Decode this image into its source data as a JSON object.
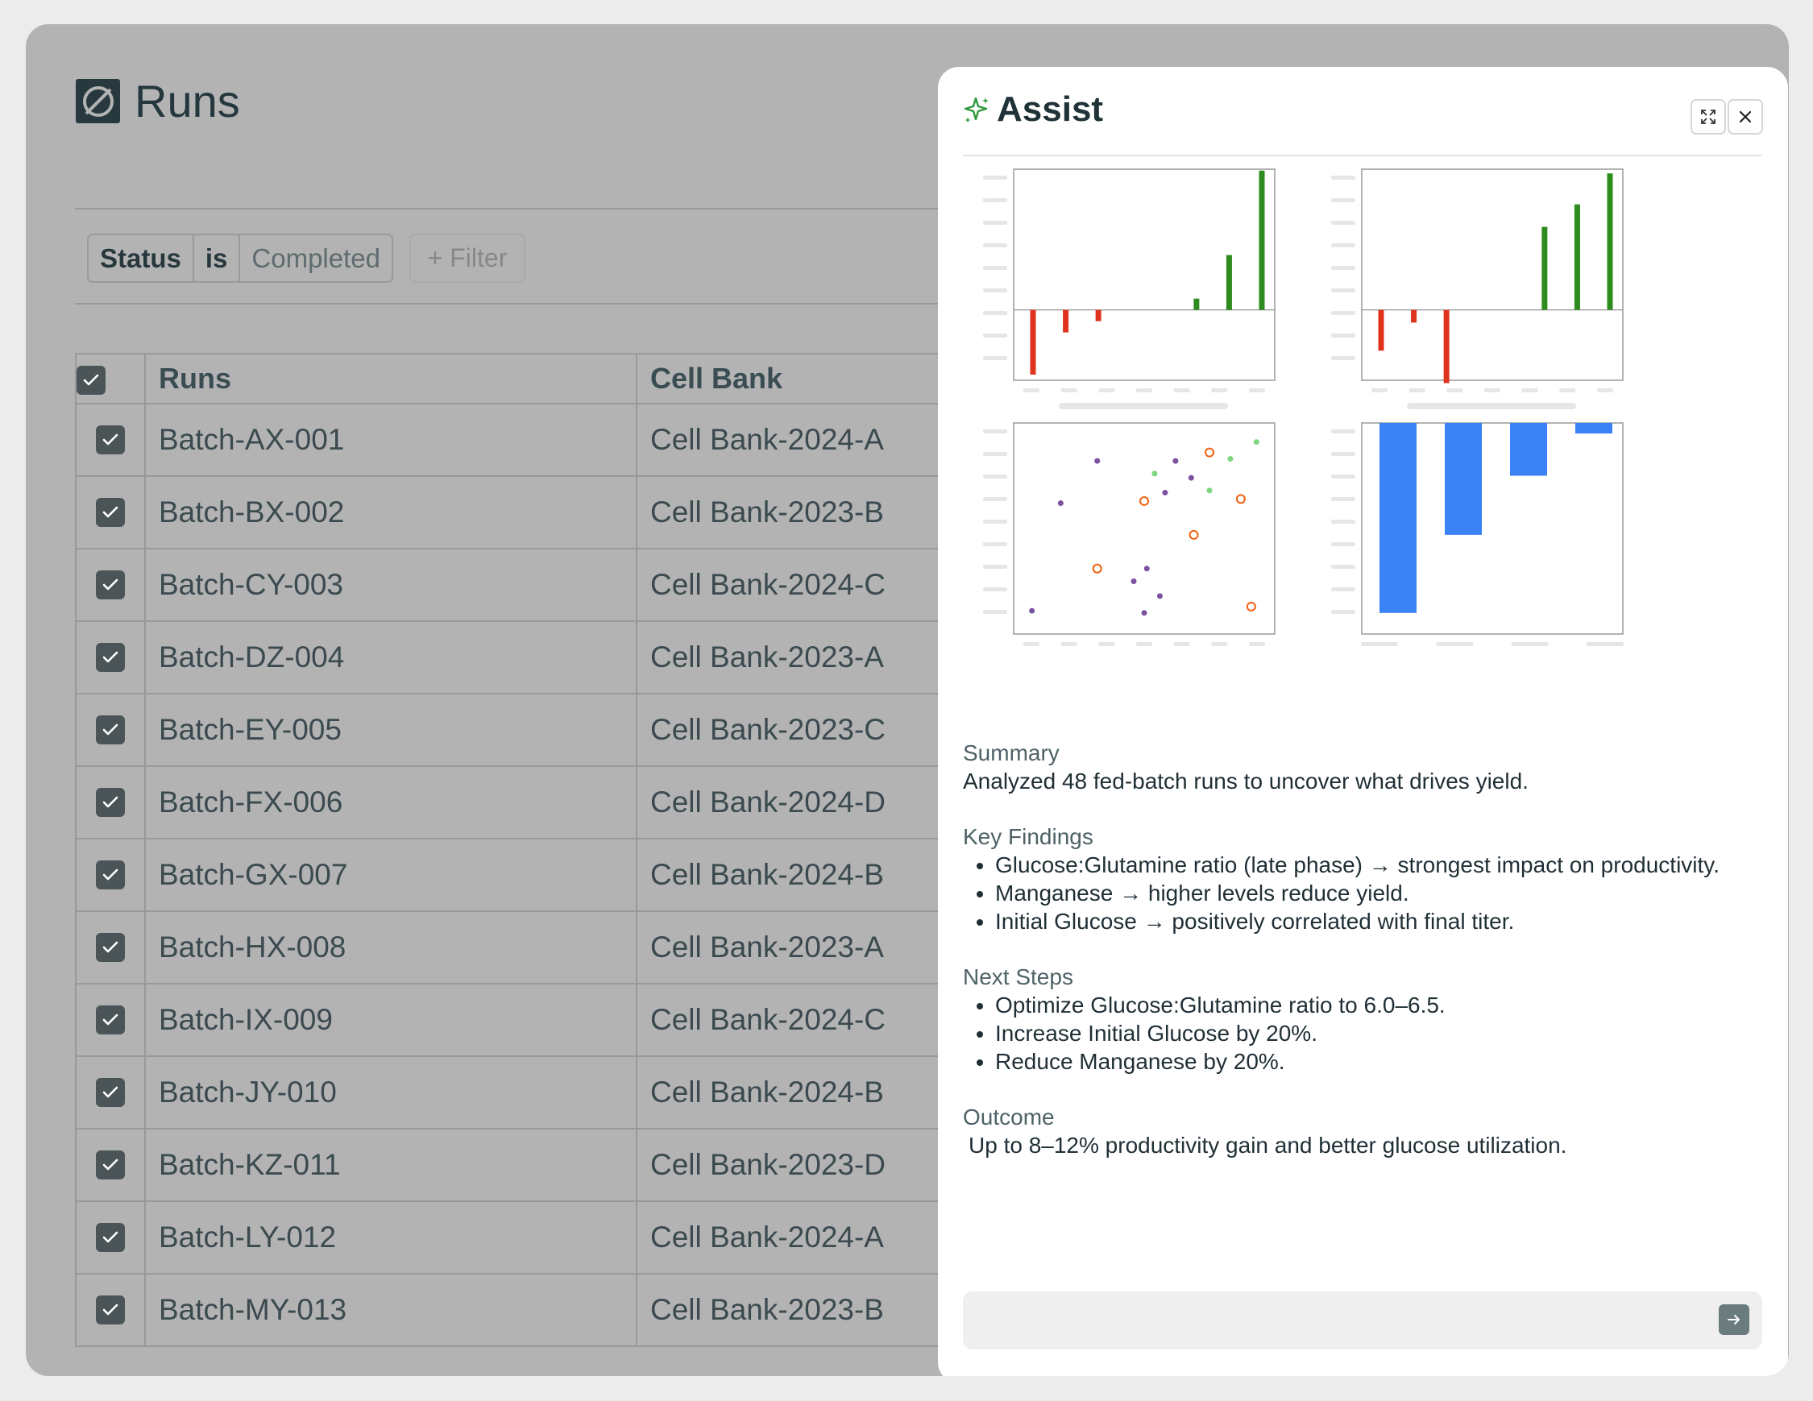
{
  "page": {
    "title": "Runs"
  },
  "filter": {
    "field": "Status",
    "operator": "is",
    "value": "Completed",
    "add_label": "+ Filter"
  },
  "table": {
    "columns": [
      "Runs",
      "Cell Bank"
    ],
    "rows": [
      {
        "run": "Batch-AX-001",
        "cell_bank": "Cell Bank-2024-A",
        "checked": true
      },
      {
        "run": "Batch-BX-002",
        "cell_bank": "Cell Bank-2023-B",
        "checked": true
      },
      {
        "run": "Batch-CY-003",
        "cell_bank": "Cell Bank-2024-C",
        "checked": true
      },
      {
        "run": "Batch-DZ-004",
        "cell_bank": "Cell Bank-2023-A",
        "checked": true
      },
      {
        "run": "Batch-EY-005",
        "cell_bank": "Cell Bank-2023-C",
        "checked": true
      },
      {
        "run": "Batch-FX-006",
        "cell_bank": "Cell Bank-2024-D",
        "checked": true
      },
      {
        "run": "Batch-GX-007",
        "cell_bank": "Cell Bank-2024-B",
        "checked": true
      },
      {
        "run": "Batch-HX-008",
        "cell_bank": "Cell Bank-2023-A",
        "checked": true
      },
      {
        "run": "Batch-IX-009",
        "cell_bank": "Cell Bank-2024-C",
        "checked": true
      },
      {
        "run": "Batch-JY-010",
        "cell_bank": "Cell Bank-2024-B",
        "checked": true
      },
      {
        "run": "Batch-KZ-011",
        "cell_bank": "Cell Bank-2023-D",
        "checked": true
      },
      {
        "run": "Batch-LY-012",
        "cell_bank": "Cell Bank-2024-A",
        "checked": true
      },
      {
        "run": "Batch-MY-013",
        "cell_bank": "Cell Bank-2023-B",
        "checked": true
      }
    ]
  },
  "assist": {
    "title": "Assist",
    "icons": {
      "title": "sparkle-icon",
      "expand": "expand-icon",
      "close": "close-icon",
      "send": "arrow-right-icon"
    },
    "summary_label": "Summary",
    "summary_text": "Analyzed 48 fed-batch runs to uncover what drives yield.",
    "findings_label": "Key Findings",
    "findings": [
      "Glucose:Glutamine ratio (late phase) → strongest impact on productivity.",
      "Manganese → higher levels reduce yield.",
      "Initial Glucose → positively correlated with final titer."
    ],
    "next_label": "Next Steps",
    "next_steps": [
      "Optimize Glucose:Glutamine ratio to 6.0–6.5.",
      "Increase Initial Glucose by 20%.",
      "Reduce Manganese by 20%."
    ],
    "outcome_label": "Outcome",
    "outcome_text": "Up to 8–12% productivity gain and better glucose utilization.",
    "chat_placeholder": ""
  },
  "colors": {
    "negative": "#e0331d",
    "positive": "#2e8b1e",
    "bar_blue": "#3b82f6",
    "scatter_purple": "#7a52a0",
    "scatter_green": "#7fd67f",
    "scatter_orange": "#f06010",
    "accent_green": "#2e9a3c"
  },
  "chart_data": [
    {
      "type": "bar",
      "ylim": [
        -5,
        10
      ],
      "values": [
        -4.6,
        -1.6,
        -0.8,
        0,
        0,
        0.8,
        3.9,
        9.9
      ],
      "colors_by_sign": true
    },
    {
      "type": "bar",
      "ylim": [
        -5,
        10
      ],
      "values": [
        -2.9,
        -0.9,
        -5.2,
        0,
        0,
        5.9,
        7.5,
        9.7
      ],
      "colors_by_sign": true
    },
    {
      "type": "scatter",
      "xlim": [
        0,
        10
      ],
      "ylim": [
        0,
        10
      ],
      "series": [
        {
          "marker": "dot",
          "color": "purple",
          "points": [
            [
              0.7,
              1.1
            ],
            [
              1.8,
              6.2
            ],
            [
              3.2,
              8.2
            ],
            [
              4.6,
              2.5
            ],
            [
              5.0,
              1.0
            ],
            [
              5.1,
              3.1
            ],
            [
              5.6,
              1.8
            ],
            [
              5.8,
              6.7
            ],
            [
              6.2,
              8.2
            ],
            [
              6.8,
              7.4
            ]
          ]
        },
        {
          "marker": "dot",
          "color": "green",
          "points": [
            [
              5.4,
              7.6
            ],
            [
              7.5,
              6.8
            ],
            [
              8.3,
              8.3
            ],
            [
              9.3,
              9.1
            ]
          ]
        },
        {
          "marker": "ring",
          "color": "orange",
          "points": [
            [
              3.2,
              3.1
            ],
            [
              5.0,
              6.3
            ],
            [
              6.9,
              4.7
            ],
            [
              7.5,
              8.6
            ],
            [
              8.7,
              6.4
            ],
            [
              9.1,
              1.3
            ]
          ]
        }
      ]
    },
    {
      "type": "bar",
      "ylim": [
        -10,
        0
      ],
      "values": [
        -9.0,
        -5.3,
        -2.5,
        -0.5
      ]
    }
  ]
}
